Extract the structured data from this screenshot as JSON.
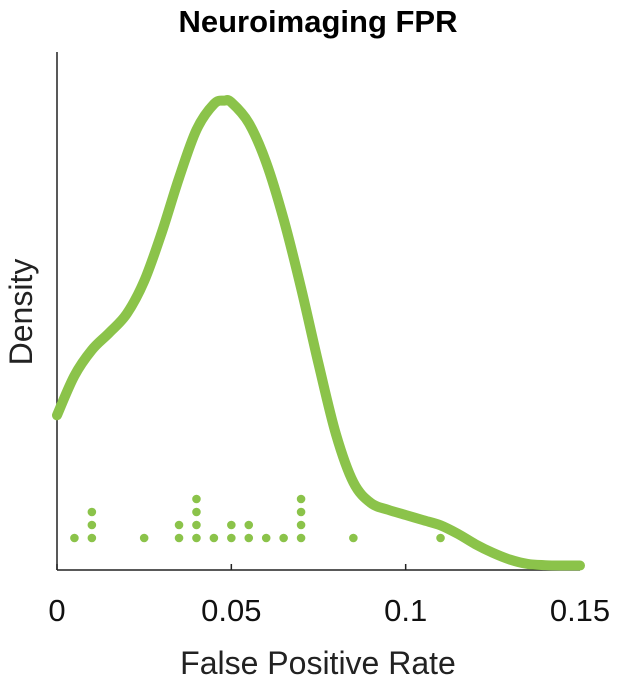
{
  "chart_data": {
    "type": "line",
    "title": "Neuroimaging FPR",
    "xlabel": "False Positive Rate",
    "ylabel": "Density",
    "xlim": [
      0,
      0.15
    ],
    "ylim": [
      0,
      28.5
    ],
    "xticks": [
      0,
      0.05,
      0.1,
      0.15
    ],
    "xtick_labels": [
      "0",
      "0.05",
      "0.1",
      "0.15"
    ],
    "grid": false,
    "series": [
      {
        "kind": "density-curve",
        "color": "#8bc34a",
        "x": [
          0,
          0.005,
          0.01,
          0.015,
          0.02,
          0.025,
          0.03,
          0.035,
          0.04,
          0.045,
          0.048,
          0.05,
          0.055,
          0.06,
          0.065,
          0.07,
          0.075,
          0.08,
          0.085,
          0.09,
          0.095,
          0.1,
          0.105,
          0.11,
          0.115,
          0.12,
          0.125,
          0.13,
          0.135,
          0.14,
          0.145,
          0.15
        ],
        "y": [
          9.0,
          11.3,
          12.8,
          13.8,
          14.9,
          16.8,
          19.6,
          22.8,
          25.6,
          27.1,
          27.3,
          27.2,
          26.0,
          23.7,
          20.4,
          16.4,
          12.0,
          7.9,
          5.1,
          3.9,
          3.5,
          3.2,
          2.9,
          2.6,
          2.1,
          1.5,
          1.0,
          0.6,
          0.35,
          0.28,
          0.26,
          0.26
        ]
      },
      {
        "kind": "dot-stack",
        "color": "#8bc34a",
        "points": [
          {
            "x": 0.005,
            "count": 1
          },
          {
            "x": 0.01,
            "count": 3
          },
          {
            "x": 0.025,
            "count": 1
          },
          {
            "x": 0.035,
            "count": 2
          },
          {
            "x": 0.04,
            "count": 4
          },
          {
            "x": 0.045,
            "count": 1
          },
          {
            "x": 0.05,
            "count": 2
          },
          {
            "x": 0.055,
            "count": 2
          },
          {
            "x": 0.06,
            "count": 1
          },
          {
            "x": 0.065,
            "count": 1
          },
          {
            "x": 0.07,
            "count": 4
          },
          {
            "x": 0.085,
            "count": 1
          },
          {
            "x": 0.11,
            "count": 1
          }
        ]
      }
    ]
  }
}
